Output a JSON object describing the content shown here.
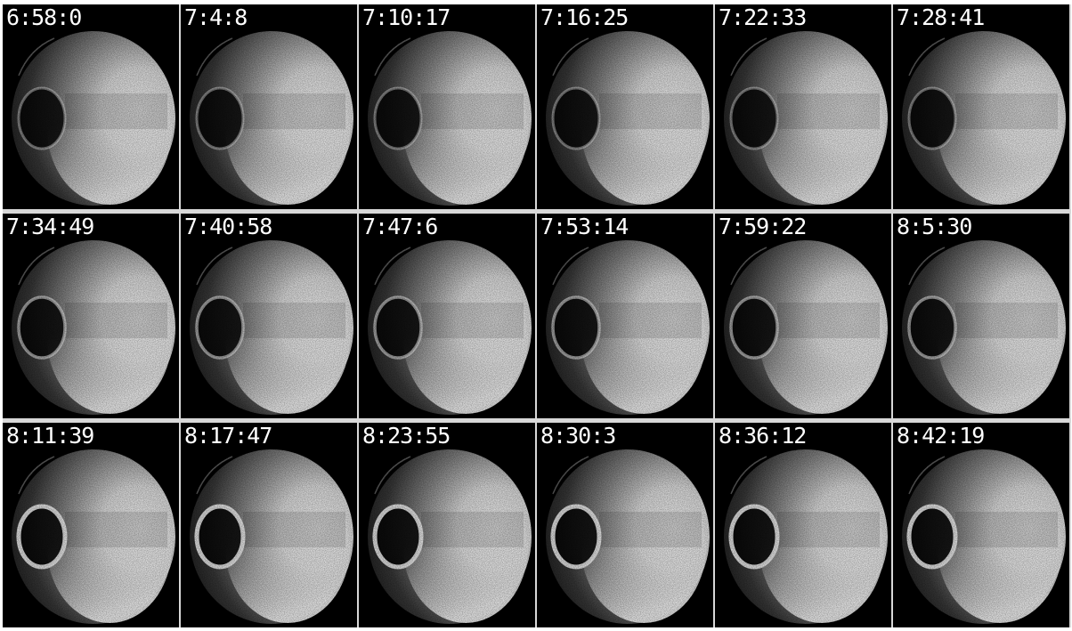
{
  "frames": [
    {
      "time": "6:58:0"
    },
    {
      "time": "7:4:8"
    },
    {
      "time": "7:10:17"
    },
    {
      "time": "7:16:25"
    },
    {
      "time": "7:22:33"
    },
    {
      "time": "7:28:41"
    },
    {
      "time": "7:34:49"
    },
    {
      "time": "7:40:58"
    },
    {
      "time": "7:47:6"
    },
    {
      "time": "7:53:14"
    },
    {
      "time": "7:59:22"
    },
    {
      "time": "8:5:30"
    },
    {
      "time": "8:11:39"
    },
    {
      "time": "8:17:47"
    },
    {
      "time": "8:23:55"
    },
    {
      "time": "8:30:3"
    },
    {
      "time": "8:36:12"
    },
    {
      "time": "8:42:19"
    }
  ],
  "colors": {
    "background": "#000000",
    "disk": "#ffffff",
    "separator": "#d8d8d8",
    "label": "#ffffff"
  }
}
